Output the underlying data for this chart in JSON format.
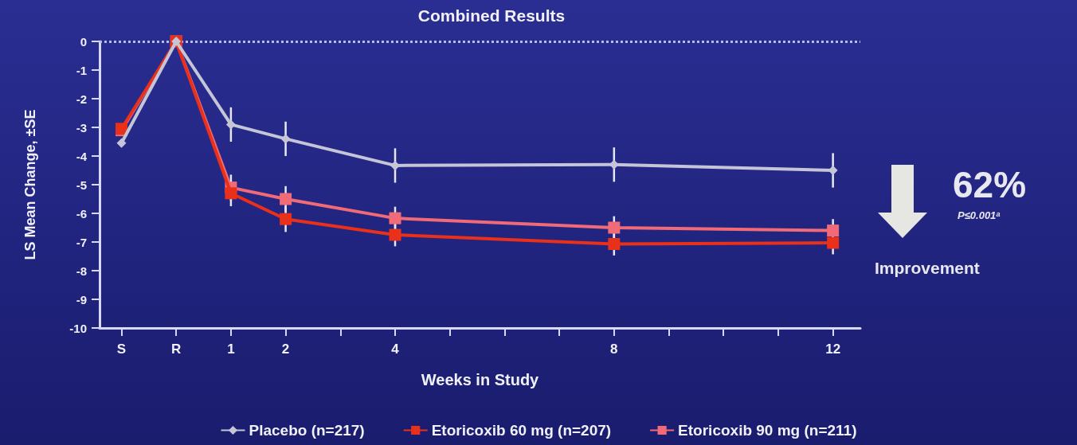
{
  "chart_data": {
    "type": "line",
    "title": "Combined Results",
    "xlabel": "Weeks in Study",
    "ylabel": "LS Mean Change, ±SE",
    "x": [
      -1,
      0,
      1,
      2,
      4,
      8,
      12
    ],
    "series": [
      {
        "name": "Placebo (n=217)",
        "color": "#c4c6d8",
        "marker": "diamond",
        "values": [
          -3.55,
          0,
          -2.9,
          -3.4,
          -4.33,
          -4.3,
          -4.5
        ],
        "errors": [
          null,
          null,
          0.6,
          0.6,
          0.6,
          0.6,
          0.6
        ]
      },
      {
        "name": "Etoricoxib 60 mg (n=207)",
        "color": "#e8301a",
        "marker": "square",
        "values": [
          -3.05,
          0,
          -5.3,
          -6.2,
          -6.75,
          -7.07,
          -7.03
        ],
        "errors": [
          null,
          null,
          0.45,
          0.45,
          0.4,
          0.4,
          0.4
        ]
      },
      {
        "name": "Etoricoxib 90 mg (n=211)",
        "color": "#f06a78",
        "marker": "square",
        "values": [
          -3.1,
          0,
          -5.1,
          -5.5,
          -6.17,
          -6.5,
          -6.6
        ],
        "errors": [
          null,
          null,
          0.45,
          0.45,
          0.4,
          0.4,
          0.4
        ]
      }
    ],
    "xlim": [
      -1.4,
      12.5
    ],
    "xticks": [
      {
        "value": -1,
        "label": "S"
      },
      {
        "value": 0,
        "label": "R"
      },
      1,
      2,
      {
        "value": 3,
        "label": null
      },
      4,
      {
        "value": 5,
        "label": null
      },
      {
        "value": 6,
        "label": null
      },
      {
        "value": 7,
        "label": null
      },
      8,
      {
        "value": 9,
        "label": null
      },
      {
        "value": 10,
        "label": null
      },
      {
        "value": 11,
        "label": null
      },
      12
    ],
    "ylim": [
      -10,
      0
    ],
    "yticks": [
      0,
      -1,
      -2,
      -3,
      -4,
      -5,
      -6,
      -7,
      -8,
      -9,
      -10
    ],
    "ref_lines": [
      {
        "axis": "y",
        "value": 0,
        "label": null,
        "color": "#b8bcf0",
        "line_style": "dotted"
      }
    ],
    "annotations": [
      "62%",
      "P≤0.001ᵃ",
      "Improvement"
    ],
    "grid": false,
    "legend": "bottom",
    "line_style": "solid"
  }
}
